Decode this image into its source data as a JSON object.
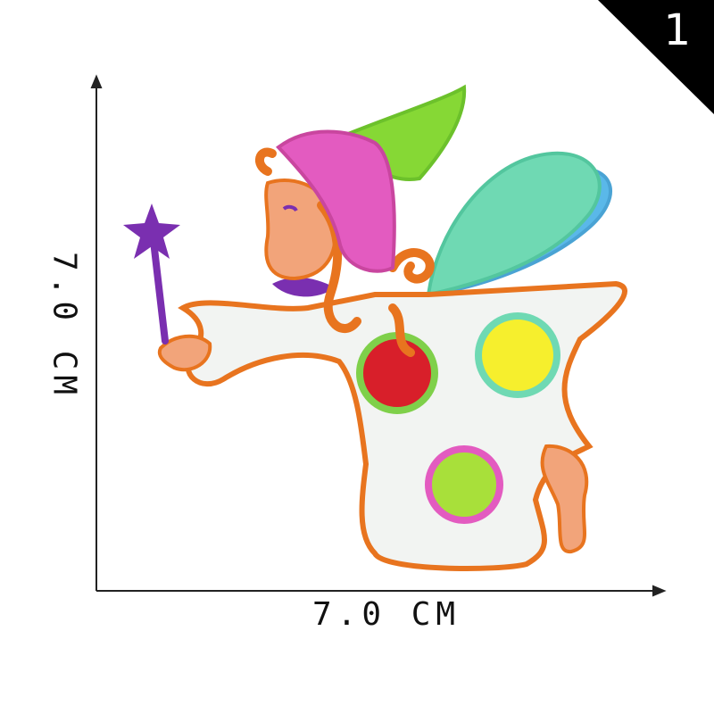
{
  "badge": {
    "number": "1",
    "color": "#000000"
  },
  "dimensions": {
    "width_label": "7.0 CM",
    "height_label": "7.0 CM"
  },
  "image": {
    "subject": "fairy-embroidered-patch",
    "colors": {
      "outline": "#e8741f",
      "dress": "#f2f4f2",
      "hat_pink": "#e35bc0",
      "hat_green": "#86d835",
      "wing_mint": "#6fd9b3",
      "wing_blue": "#5ab8e9",
      "star": "#7a2fb0",
      "skin": "#f2a47a",
      "dot_red": "#d81f2a",
      "dot_yellow": "#f6ef2d",
      "dot_lime": "#a8e03a"
    }
  }
}
